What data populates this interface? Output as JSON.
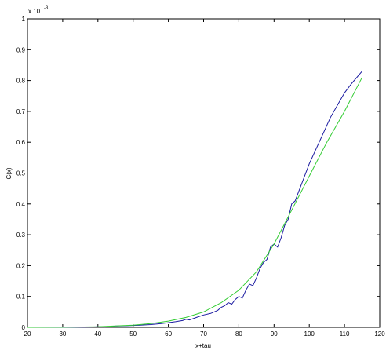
{
  "chart_data": {
    "type": "line",
    "title": "",
    "xlabel": "x+tau",
    "ylabel": "C(x)",
    "y_multiplier_label": "x 10",
    "y_multiplier_exponent": "-3",
    "xlim": [
      20,
      120
    ],
    "ylim": [
      0,
      1
    ],
    "grid": false,
    "x_ticks": [
      20,
      30,
      40,
      50,
      60,
      70,
      80,
      90,
      100,
      110,
      120
    ],
    "y_ticks": [
      0,
      0.1,
      0.2,
      0.3,
      0.4,
      0.5,
      0.6,
      0.7,
      0.8,
      0.9,
      1
    ],
    "series": [
      {
        "color": "#1a1aa0",
        "x": [
          20,
          30,
          38,
          40,
          42,
          45,
          48,
          50,
          52,
          55,
          58,
          60,
          62,
          64,
          65,
          66,
          68,
          70,
          72,
          74,
          75,
          76,
          77,
          78,
          79,
          80,
          81,
          82,
          83,
          84,
          85,
          86,
          87,
          88,
          89,
          90,
          91,
          92,
          93,
          94,
          95,
          96,
          98,
          100,
          102,
          104,
          106,
          108,
          110,
          112,
          115
        ],
        "y": [
          0,
          0,
          0.001,
          0.002,
          0.001,
          0.004,
          0.005,
          0.006,
          0.007,
          0.009,
          0.012,
          0.015,
          0.018,
          0.022,
          0.026,
          0.024,
          0.032,
          0.04,
          0.045,
          0.055,
          0.065,
          0.07,
          0.08,
          0.075,
          0.09,
          0.1,
          0.095,
          0.12,
          0.14,
          0.135,
          0.16,
          0.19,
          0.21,
          0.22,
          0.26,
          0.27,
          0.26,
          0.29,
          0.33,
          0.35,
          0.4,
          0.41,
          0.47,
          0.53,
          0.58,
          0.63,
          0.68,
          0.72,
          0.76,
          0.79,
          0.83
        ]
      },
      {
        "color": "#33cc33",
        "x": [
          20,
          30,
          40,
          50,
          55,
          60,
          65,
          70,
          75,
          80,
          85,
          90,
          95,
          100,
          105,
          110,
          115
        ],
        "y": [
          0,
          0.0003,
          0.002,
          0.007,
          0.012,
          0.02,
          0.032,
          0.05,
          0.08,
          0.12,
          0.18,
          0.27,
          0.38,
          0.49,
          0.6,
          0.7,
          0.81
        ]
      }
    ]
  }
}
